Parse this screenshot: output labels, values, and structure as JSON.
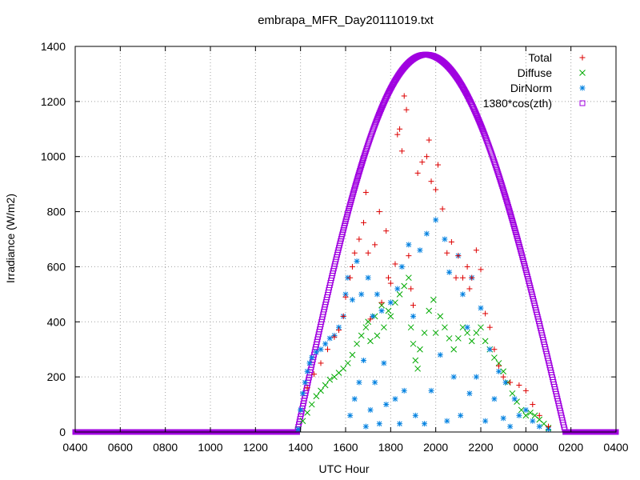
{
  "chart_data": {
    "type": "scatter",
    "title": "embrapa_MFR_Day20111019.txt",
    "xlabel": "UTC Hour",
    "ylabel": "Irradiance (W/m2)",
    "xlim": [
      0,
      24
    ],
    "ylim": [
      0,
      1400
    ],
    "x_ticks": [
      "0400",
      "0600",
      "0800",
      "1000",
      "1200",
      "1400",
      "1600",
      "1800",
      "2000",
      "2200",
      "0000",
      "0200",
      "0400"
    ],
    "y_ticks": [
      0,
      200,
      400,
      600,
      800,
      1000,
      1200,
      1400
    ],
    "grid": true,
    "legend_position": "top-right",
    "series": [
      {
        "name": "Total",
        "marker": "plus",
        "color": "#dd0000",
        "points": [
          [
            10.3,
            160
          ],
          [
            10.6,
            210
          ],
          [
            10.9,
            250
          ],
          [
            11.2,
            300
          ],
          [
            11.5,
            345
          ],
          [
            11.7,
            370
          ],
          [
            11.9,
            420
          ],
          [
            12.0,
            490
          ],
          [
            12.2,
            560
          ],
          [
            12.3,
            600
          ],
          [
            12.4,
            650
          ],
          [
            12.6,
            700
          ],
          [
            12.8,
            760
          ],
          [
            12.9,
            870
          ],
          [
            13.0,
            650
          ],
          [
            13.1,
            410
          ],
          [
            13.3,
            680
          ],
          [
            13.5,
            800
          ],
          [
            13.6,
            470
          ],
          [
            13.8,
            730
          ],
          [
            13.9,
            560
          ],
          [
            14.0,
            540
          ],
          [
            14.2,
            610
          ],
          [
            14.3,
            1080
          ],
          [
            14.4,
            1100
          ],
          [
            14.5,
            1020
          ],
          [
            14.6,
            1220
          ],
          [
            14.7,
            1170
          ],
          [
            14.8,
            640
          ],
          [
            14.9,
            520
          ],
          [
            15.0,
            460
          ],
          [
            15.2,
            940
          ],
          [
            15.4,
            980
          ],
          [
            15.6,
            1000
          ],
          [
            15.7,
            1060
          ],
          [
            15.8,
            910
          ],
          [
            16.0,
            880
          ],
          [
            16.1,
            970
          ],
          [
            16.3,
            810
          ],
          [
            16.5,
            650
          ],
          [
            16.7,
            690
          ],
          [
            16.9,
            560
          ],
          [
            17.0,
            640
          ],
          [
            17.2,
            560
          ],
          [
            17.4,
            600
          ],
          [
            17.5,
            520
          ],
          [
            17.6,
            560
          ],
          [
            17.8,
            660
          ],
          [
            18.0,
            590
          ],
          [
            18.2,
            430
          ],
          [
            18.4,
            380
          ],
          [
            18.6,
            300
          ],
          [
            18.8,
            240
          ],
          [
            19.0,
            200
          ],
          [
            19.3,
            180
          ],
          [
            19.7,
            170
          ],
          [
            20.0,
            150
          ],
          [
            20.3,
            100
          ],
          [
            20.6,
            60
          ],
          [
            21.0,
            20
          ]
        ]
      },
      {
        "name": "Diffuse",
        "marker": "cross",
        "color": "#00aa00",
        "points": [
          [
            9.9,
            10
          ],
          [
            10.1,
            40
          ],
          [
            10.3,
            70
          ],
          [
            10.5,
            100
          ],
          [
            10.7,
            130
          ],
          [
            10.9,
            150
          ],
          [
            11.1,
            170
          ],
          [
            11.3,
            190
          ],
          [
            11.5,
            200
          ],
          [
            11.7,
            215
          ],
          [
            11.9,
            230
          ],
          [
            12.1,
            250
          ],
          [
            12.3,
            280
          ],
          [
            12.5,
            320
          ],
          [
            12.7,
            350
          ],
          [
            12.9,
            380
          ],
          [
            13.0,
            400
          ],
          [
            13.1,
            330
          ],
          [
            13.3,
            420
          ],
          [
            13.4,
            350
          ],
          [
            13.6,
            460
          ],
          [
            13.7,
            380
          ],
          [
            13.9,
            440
          ],
          [
            14.0,
            420
          ],
          [
            14.2,
            470
          ],
          [
            14.4,
            500
          ],
          [
            14.6,
            530
          ],
          [
            14.8,
            560
          ],
          [
            14.9,
            380
          ],
          [
            15.0,
            320
          ],
          [
            15.1,
            260
          ],
          [
            15.2,
            230
          ],
          [
            15.3,
            300
          ],
          [
            15.5,
            360
          ],
          [
            15.7,
            440
          ],
          [
            15.9,
            480
          ],
          [
            16.0,
            360
          ],
          [
            16.2,
            420
          ],
          [
            16.4,
            380
          ],
          [
            16.6,
            340
          ],
          [
            16.8,
            300
          ],
          [
            17.0,
            340
          ],
          [
            17.2,
            380
          ],
          [
            17.4,
            360
          ],
          [
            17.6,
            330
          ],
          [
            17.8,
            360
          ],
          [
            18.0,
            380
          ],
          [
            18.2,
            330
          ],
          [
            18.4,
            300
          ],
          [
            18.6,
            270
          ],
          [
            18.8,
            250
          ],
          [
            19.0,
            220
          ],
          [
            19.2,
            180
          ],
          [
            19.4,
            140
          ],
          [
            19.6,
            110
          ],
          [
            19.8,
            80
          ],
          [
            20.0,
            60
          ],
          [
            20.2,
            70
          ],
          [
            20.4,
            60
          ],
          [
            20.6,
            45
          ],
          [
            20.8,
            30
          ],
          [
            21.0,
            15
          ]
        ]
      },
      {
        "name": "DirNorm",
        "marker": "star",
        "color": "#0080e0",
        "points": [
          [
            9.9,
            10
          ],
          [
            10.0,
            80
          ],
          [
            10.1,
            140
          ],
          [
            10.2,
            180
          ],
          [
            10.3,
            220
          ],
          [
            10.4,
            250
          ],
          [
            10.5,
            270
          ],
          [
            10.7,
            290
          ],
          [
            10.9,
            300
          ],
          [
            11.1,
            320
          ],
          [
            11.3,
            340
          ],
          [
            11.5,
            350
          ],
          [
            11.7,
            380
          ],
          [
            11.9,
            420
          ],
          [
            12.0,
            500
          ],
          [
            12.1,
            560
          ],
          [
            12.2,
            60
          ],
          [
            12.3,
            480
          ],
          [
            12.4,
            120
          ],
          [
            12.5,
            620
          ],
          [
            12.6,
            180
          ],
          [
            12.7,
            500
          ],
          [
            12.8,
            260
          ],
          [
            12.9,
            20
          ],
          [
            13.0,
            560
          ],
          [
            13.1,
            80
          ],
          [
            13.2,
            420
          ],
          [
            13.3,
            180
          ],
          [
            13.4,
            500
          ],
          [
            13.5,
            30
          ],
          [
            13.6,
            440
          ],
          [
            13.7,
            250
          ],
          [
            13.8,
            100
          ],
          [
            14.0,
            470
          ],
          [
            14.2,
            120
          ],
          [
            14.3,
            520
          ],
          [
            14.4,
            30
          ],
          [
            14.5,
            600
          ],
          [
            14.6,
            150
          ],
          [
            14.8,
            680
          ],
          [
            15.0,
            420
          ],
          [
            15.1,
            60
          ],
          [
            15.3,
            660
          ],
          [
            15.5,
            30
          ],
          [
            15.6,
            720
          ],
          [
            15.8,
            150
          ],
          [
            16.0,
            770
          ],
          [
            16.2,
            280
          ],
          [
            16.4,
            700
          ],
          [
            16.5,
            40
          ],
          [
            16.6,
            580
          ],
          [
            16.8,
            200
          ],
          [
            17.0,
            640
          ],
          [
            17.1,
            60
          ],
          [
            17.2,
            500
          ],
          [
            17.4,
            380
          ],
          [
            17.5,
            140
          ],
          [
            17.6,
            560
          ],
          [
            17.8,
            200
          ],
          [
            18.0,
            450
          ],
          [
            18.2,
            40
          ],
          [
            18.4,
            300
          ],
          [
            18.6,
            120
          ],
          [
            18.8,
            220
          ],
          [
            19.0,
            50
          ],
          [
            19.1,
            180
          ],
          [
            19.3,
            20
          ],
          [
            19.5,
            120
          ],
          [
            19.7,
            60
          ],
          [
            20.0,
            80
          ],
          [
            20.3,
            40
          ],
          [
            20.6,
            20
          ],
          [
            21.0,
            10
          ]
        ]
      },
      {
        "name": "1380*cos(zth)",
        "marker": "square",
        "color": "#a000e0",
        "model": {
          "peak": 1370,
          "peak_hour": 15.55,
          "start_hour": 9.85,
          "end_hour": 21.75,
          "sample_step_hours": 0.025
        }
      }
    ]
  }
}
